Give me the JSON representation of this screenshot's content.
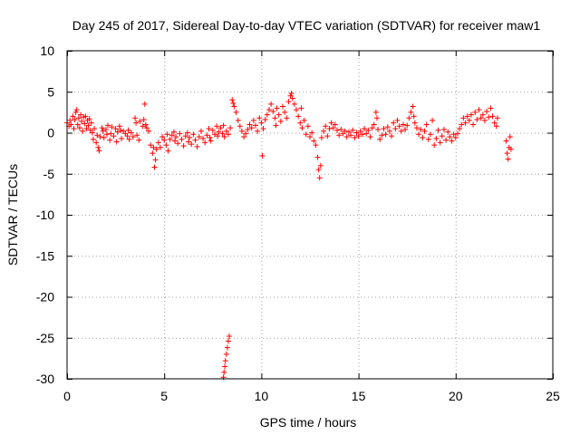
{
  "chart_data": {
    "type": "scatter",
    "title": "Day 245 of 2017, Sidereal Day-to-day VTEC variation (SDTVAR) for receiver maw1",
    "xlabel": "GPS time / hours",
    "ylabel": "SDTVAR / TECUs",
    "xlim": [
      0,
      25
    ],
    "ylim": [
      -30,
      10
    ],
    "xticks": [
      0,
      5,
      10,
      15,
      20,
      25
    ],
    "yticks": [
      10,
      5,
      0,
      -5,
      -10,
      -15,
      -20,
      -25,
      -30
    ],
    "grid": true,
    "marker": "+",
    "color": "#ff0000",
    "series": [
      {
        "name": "maw1",
        "points": [
          [
            0.0,
            1.2
          ],
          [
            0.1,
            0.8
          ],
          [
            0.15,
            1.5
          ],
          [
            0.2,
            1.0
          ],
          [
            0.3,
            2.0
          ],
          [
            0.35,
            0.5
          ],
          [
            0.4,
            1.6
          ],
          [
            0.45,
            2.5
          ],
          [
            0.5,
            2.8
          ],
          [
            0.55,
            1.0
          ],
          [
            0.6,
            1.8
          ],
          [
            0.65,
            0.6
          ],
          [
            0.7,
            2.2
          ],
          [
            0.75,
            1.4
          ],
          [
            0.8,
            0.2
          ],
          [
            0.85,
            1.9
          ],
          [
            0.9,
            1.1
          ],
          [
            0.95,
            2.0
          ],
          [
            1.0,
            0.5
          ],
          [
            1.05,
            1.5
          ],
          [
            1.1,
            0.9
          ],
          [
            1.15,
            1.7
          ],
          [
            1.2,
            0.3
          ],
          [
            1.25,
            1.2
          ],
          [
            1.3,
            0.0
          ],
          [
            1.35,
            -0.8
          ],
          [
            1.4,
            0.5
          ],
          [
            1.5,
            -1.2
          ],
          [
            1.55,
            -0.3
          ],
          [
            1.6,
            -1.8
          ],
          [
            1.65,
            -2.2
          ],
          [
            1.7,
            -0.5
          ],
          [
            1.8,
            0.6
          ],
          [
            1.85,
            0.2
          ],
          [
            1.9,
            -0.6
          ],
          [
            2.0,
            0.4
          ],
          [
            2.05,
            -0.2
          ],
          [
            2.1,
            0.9
          ],
          [
            2.2,
            -0.9
          ],
          [
            2.25,
            -0.1
          ],
          [
            2.3,
            0.7
          ],
          [
            2.4,
            -0.4
          ],
          [
            2.5,
            0.5
          ],
          [
            2.55,
            -1.1
          ],
          [
            2.6,
            0.1
          ],
          [
            2.7,
            0.8
          ],
          [
            2.75,
            0.3
          ],
          [
            2.8,
            -0.7
          ],
          [
            2.9,
            0.2
          ],
          [
            3.0,
            -0.1
          ],
          [
            3.1,
            -0.4
          ],
          [
            3.15,
            0.3
          ],
          [
            3.2,
            -0.8
          ],
          [
            3.3,
            0.0
          ],
          [
            3.4,
            -0.5
          ],
          [
            3.5,
            1.8
          ],
          [
            3.55,
            1.2
          ],
          [
            3.6,
            -0.3
          ],
          [
            3.7,
            -0.9
          ],
          [
            3.75,
            1.4
          ],
          [
            3.9,
            0.8
          ],
          [
            3.95,
            1.6
          ],
          [
            4.0,
            3.5
          ],
          [
            4.05,
            1.0
          ],
          [
            4.1,
            0.6
          ],
          [
            4.2,
            0.2
          ],
          [
            4.3,
            -1.5
          ],
          [
            4.4,
            -2.5
          ],
          [
            4.45,
            -1.8
          ],
          [
            4.5,
            -4.2
          ],
          [
            4.55,
            -3.3
          ],
          [
            4.6,
            -2.0
          ],
          [
            4.7,
            -1.2
          ],
          [
            4.8,
            -1.8
          ],
          [
            4.9,
            -0.5
          ],
          [
            5.0,
            -0.9
          ],
          [
            5.1,
            -1.5
          ],
          [
            5.15,
            -0.2
          ],
          [
            5.2,
            -2.2
          ],
          [
            5.3,
            -0.8
          ],
          [
            5.4,
            -0.3
          ],
          [
            5.5,
            0.1
          ],
          [
            5.55,
            -1.0
          ],
          [
            5.6,
            -0.5
          ],
          [
            5.7,
            -1.3
          ],
          [
            5.8,
            -0.1
          ],
          [
            5.9,
            -0.8
          ],
          [
            6.0,
            -1.6
          ],
          [
            6.1,
            -0.4
          ],
          [
            6.2,
            0.0
          ],
          [
            6.25,
            -1.1
          ],
          [
            6.3,
            -0.6
          ],
          [
            6.4,
            -1.4
          ],
          [
            6.5,
            -0.2
          ],
          [
            6.6,
            -0.9
          ],
          [
            6.7,
            -1.7
          ],
          [
            6.8,
            -0.5
          ],
          [
            6.9,
            0.2
          ],
          [
            7.0,
            -0.7
          ],
          [
            7.1,
            -1.2
          ],
          [
            7.2,
            -0.3
          ],
          [
            7.3,
            0.5
          ],
          [
            7.35,
            -0.6
          ],
          [
            7.4,
            -1.0
          ],
          [
            7.5,
            0.3
          ],
          [
            7.6,
            -0.2
          ],
          [
            7.7,
            0.8
          ],
          [
            7.75,
            -0.4
          ],
          [
            7.8,
            0.1
          ],
          [
            7.9,
            0.6
          ],
          [
            8.0,
            -0.1
          ],
          [
            8.05,
            0.9
          ],
          [
            8.1,
            -0.5
          ],
          [
            8.2,
            0.2
          ],
          [
            8.3,
            -0.2
          ],
          [
            8.4,
            0.6
          ],
          [
            8.5,
            4.0
          ],
          [
            8.55,
            3.6
          ],
          [
            8.6,
            3.2
          ],
          [
            8.7,
            2.5
          ],
          [
            8.8,
            1.5
          ],
          [
            8.9,
            0.8
          ],
          [
            9.0,
            0.2
          ],
          [
            9.1,
            -0.5
          ],
          [
            9.2,
            -0.1
          ],
          [
            9.3,
            0.4
          ],
          [
            9.4,
            1.0
          ],
          [
            9.5,
            0.6
          ],
          [
            9.6,
            1.5
          ],
          [
            9.7,
            0.9
          ],
          [
            9.8,
            0.2
          ],
          [
            9.9,
            1.8
          ],
          [
            10.0,
            1.2
          ],
          [
            10.05,
            -2.8
          ],
          [
            10.1,
            0.5
          ],
          [
            10.2,
            1.6
          ],
          [
            10.3,
            2.2
          ],
          [
            10.4,
            2.8
          ],
          [
            10.5,
            3.5
          ],
          [
            10.6,
            2.6
          ],
          [
            10.7,
            1.8
          ],
          [
            10.75,
            0.9
          ],
          [
            10.8,
            3.0
          ],
          [
            10.9,
            2.2
          ],
          [
            11.0,
            1.4
          ],
          [
            11.1,
            3.2
          ],
          [
            11.2,
            2.5
          ],
          [
            11.3,
            1.8
          ],
          [
            11.4,
            3.8
          ],
          [
            11.5,
            4.5
          ],
          [
            11.55,
            4.8
          ],
          [
            11.6,
            4.2
          ],
          [
            11.7,
            3.5
          ],
          [
            11.8,
            2.8
          ],
          [
            11.9,
            2.0
          ],
          [
            12.0,
            1.2
          ],
          [
            12.05,
            3.0
          ],
          [
            12.1,
            0.6
          ],
          [
            12.2,
            1.5
          ],
          [
            12.3,
            -0.2
          ],
          [
            12.4,
            0.8
          ],
          [
            12.5,
            -0.5
          ],
          [
            12.6,
            0.0
          ],
          [
            12.7,
            -1.0
          ],
          [
            12.8,
            -1.5
          ],
          [
            12.9,
            -3.0
          ],
          [
            12.95,
            -4.5
          ],
          [
            13.0,
            -5.5
          ],
          [
            13.05,
            -4.0
          ],
          [
            13.1,
            -0.6
          ],
          [
            13.2,
            0.2
          ],
          [
            13.3,
            0.8
          ],
          [
            13.4,
            -0.4
          ],
          [
            13.5,
            0.5
          ],
          [
            13.6,
            1.2
          ],
          [
            13.7,
            0.6
          ],
          [
            13.8,
            1.0
          ],
          [
            13.9,
            0.3
          ],
          [
            14.0,
            -0.3
          ],
          [
            14.1,
            0.4
          ],
          [
            14.2,
            -0.1
          ],
          [
            14.3,
            0.2
          ],
          [
            14.4,
            -0.5
          ],
          [
            14.5,
            0.1
          ],
          [
            14.6,
            -0.3
          ],
          [
            14.7,
            0.3
          ],
          [
            14.8,
            -0.6
          ],
          [
            14.9,
            0.0
          ],
          [
            15.0,
            -0.4
          ],
          [
            15.1,
            0.2
          ],
          [
            15.2,
            -0.2
          ],
          [
            15.3,
            0.5
          ],
          [
            15.4,
            -0.1
          ],
          [
            15.5,
            0.3
          ],
          [
            15.6,
            -0.5
          ],
          [
            15.7,
            0.6
          ],
          [
            15.8,
            1.0
          ],
          [
            15.9,
            2.5
          ],
          [
            15.95,
            1.8
          ],
          [
            16.0,
            0.4
          ],
          [
            16.1,
            -0.8
          ],
          [
            16.2,
            -0.3
          ],
          [
            16.3,
            0.5
          ],
          [
            16.4,
            -0.2
          ],
          [
            16.5,
            0.7
          ],
          [
            16.6,
            0.2
          ],
          [
            16.7,
            -0.4
          ],
          [
            16.8,
            1.2
          ],
          [
            16.9,
            0.5
          ],
          [
            17.0,
            1.5
          ],
          [
            17.1,
            0.8
          ],
          [
            17.2,
            0.2
          ],
          [
            17.3,
            1.0
          ],
          [
            17.4,
            0.4
          ],
          [
            17.5,
            0.9
          ],
          [
            17.6,
            1.8
          ],
          [
            17.7,
            2.5
          ],
          [
            17.8,
            3.2
          ],
          [
            17.85,
            2.0
          ],
          [
            17.9,
            1.2
          ],
          [
            18.0,
            0.6
          ],
          [
            18.1,
            -0.2
          ],
          [
            18.2,
            0.4
          ],
          [
            18.3,
            -0.6
          ],
          [
            18.4,
            0.2
          ],
          [
            18.5,
            1.0
          ],
          [
            18.6,
            -0.8
          ],
          [
            18.7,
            -0.2
          ],
          [
            18.8,
            1.5
          ],
          [
            18.9,
            -1.5
          ],
          [
            19.0,
            -0.7
          ],
          [
            19.1,
            0.3
          ],
          [
            19.2,
            -1.2
          ],
          [
            19.3,
            -0.4
          ],
          [
            19.4,
            0.4
          ],
          [
            19.5,
            -0.9
          ],
          [
            19.6,
            0.1
          ],
          [
            19.7,
            -0.5
          ],
          [
            19.8,
            -1.0
          ],
          [
            19.9,
            -0.2
          ],
          [
            20.0,
            -0.6
          ],
          [
            20.1,
            -0.1
          ],
          [
            20.2,
            0.5
          ],
          [
            20.3,
            1.0
          ],
          [
            20.4,
            1.8
          ],
          [
            20.5,
            1.2
          ],
          [
            20.6,
            2.0
          ],
          [
            20.7,
            1.5
          ],
          [
            20.8,
            2.2
          ],
          [
            20.9,
            1.0
          ],
          [
            21.0,
            2.5
          ],
          [
            21.1,
            1.6
          ],
          [
            21.2,
            2.8
          ],
          [
            21.3,
            1.8
          ],
          [
            21.4,
            2.2
          ],
          [
            21.5,
            1.5
          ],
          [
            21.6,
            2.6
          ],
          [
            21.7,
            1.9
          ],
          [
            21.8,
            3.0
          ],
          [
            21.9,
            2.0
          ],
          [
            22.0,
            1.2
          ],
          [
            22.1,
            0.8
          ],
          [
            22.15,
            1.8
          ],
          [
            22.6,
            -1.0
          ],
          [
            22.65,
            -2.5
          ],
          [
            22.7,
            -3.2
          ],
          [
            22.75,
            -1.8
          ],
          [
            22.8,
            -0.5
          ],
          [
            22.85,
            -2.0
          ],
          [
            8.05,
            -29.8
          ],
          [
            8.08,
            -29.2
          ],
          [
            8.12,
            -28.5
          ],
          [
            8.15,
            -27.8
          ],
          [
            8.2,
            -27.0
          ],
          [
            8.25,
            -26.2
          ],
          [
            8.3,
            -25.4
          ],
          [
            8.35,
            -24.8
          ]
        ]
      }
    ]
  }
}
